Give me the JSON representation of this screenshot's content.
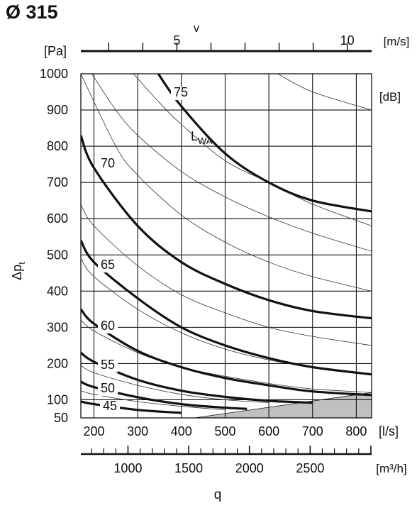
{
  "chart_data": {
    "type": "line",
    "title": "Ø 315",
    "ylabel": "Δp",
    "ylabel_sub": "t",
    "y_unit": "[Pa]",
    "y_ticks": [
      50,
      100,
      200,
      300,
      400,
      500,
      600,
      700,
      800,
      900,
      1000
    ],
    "ylim": [
      50,
      1000
    ],
    "xlabel": "q",
    "x_unit_ls": "[l/s]",
    "x_ticks_ls": [
      200,
      300,
      400,
      500,
      600,
      700,
      800
    ],
    "xlim_ls": [
      170,
      835
    ],
    "x_unit_m3h": "[m³/h]",
    "x_ticks_m3h": [
      1000,
      1500,
      2000,
      2500
    ],
    "v_label": "v",
    "v_unit": "[m/s]",
    "v_ticks": [
      5,
      10
    ],
    "db_unit": "[dB]",
    "series_label_main": "L",
    "series_label_sub": "WA",
    "grid": true,
    "series": [
      {
        "name": "75",
        "points": [
          [
            347,
            1000
          ],
          [
            400,
            910
          ],
          [
            500,
            780
          ],
          [
            600,
            700
          ],
          [
            700,
            650
          ],
          [
            835,
            620
          ]
        ]
      },
      {
        "name": "70",
        "points": [
          [
            170,
            830
          ],
          [
            200,
            740
          ],
          [
            300,
            580
          ],
          [
            400,
            480
          ],
          [
            500,
            420
          ],
          [
            600,
            375
          ],
          [
            700,
            345
          ],
          [
            835,
            325
          ]
        ]
      },
      {
        "name": "65",
        "points": [
          [
            170,
            540
          ],
          [
            200,
            480
          ],
          [
            300,
            380
          ],
          [
            400,
            300
          ],
          [
            500,
            250
          ],
          [
            600,
            215
          ],
          [
            700,
            190
          ],
          [
            835,
            170
          ]
        ]
      },
      {
        "name": "60",
        "points": [
          [
            170,
            350
          ],
          [
            200,
            310
          ],
          [
            300,
            235
          ],
          [
            400,
            190
          ],
          [
            500,
            160
          ],
          [
            600,
            140
          ],
          [
            700,
            123
          ],
          [
            835,
            113
          ]
        ]
      },
      {
        "name": "55",
        "points": [
          [
            170,
            230
          ],
          [
            200,
            205
          ],
          [
            300,
            155
          ],
          [
            400,
            125
          ],
          [
            500,
            108
          ],
          [
            600,
            97
          ],
          [
            700,
            92
          ]
        ]
      },
      {
        "name": "50",
        "points": [
          [
            170,
            150
          ],
          [
            200,
            135
          ],
          [
            300,
            107
          ],
          [
            400,
            88
          ],
          [
            500,
            78
          ],
          [
            550,
            75
          ]
        ]
      },
      {
        "name": "45",
        "points": [
          [
            170,
            95
          ],
          [
            200,
            88
          ],
          [
            300,
            72
          ],
          [
            400,
            64
          ]
        ]
      }
    ],
    "minor_lines": [
      [
        [
          195,
          1000
        ],
        [
          250,
          900
        ],
        [
          300,
          830
        ],
        [
          400,
          730
        ],
        [
          500,
          660
        ],
        [
          600,
          605
        ],
        [
          700,
          560
        ],
        [
          835,
          510
        ]
      ],
      [
        [
          290,
          1000
        ],
        [
          350,
          920
        ],
        [
          400,
          860
        ],
        [
          500,
          760
        ],
        [
          600,
          700
        ],
        [
          700,
          640
        ],
        [
          835,
          580
        ]
      ],
      [
        [
          620,
          1000
        ],
        [
          700,
          950
        ],
        [
          835,
          900
        ]
      ],
      [
        [
          170,
          1000
        ],
        [
          250,
          800
        ],
        [
          300,
          720
        ],
        [
          400,
          610
        ],
        [
          500,
          535
        ],
        [
          600,
          480
        ],
        [
          700,
          440
        ],
        [
          835,
          400
        ]
      ],
      [
        [
          170,
          640
        ],
        [
          200,
          580
        ],
        [
          300,
          470
        ],
        [
          400,
          390
        ],
        [
          500,
          340
        ],
        [
          600,
          300
        ],
        [
          700,
          275
        ],
        [
          835,
          250
        ]
      ],
      [
        [
          170,
          490
        ],
        [
          200,
          440
        ],
        [
          300,
          350
        ],
        [
          400,
          285
        ],
        [
          500,
          240
        ],
        [
          600,
          210
        ],
        [
          700,
          190
        ],
        [
          835,
          170
        ]
      ],
      [
        [
          170,
          320
        ],
        [
          200,
          290
        ],
        [
          300,
          230
        ],
        [
          400,
          190
        ],
        [
          500,
          165
        ],
        [
          600,
          145
        ],
        [
          700,
          130
        ],
        [
          835,
          120
        ]
      ],
      [
        [
          170,
          195
        ],
        [
          200,
          175
        ],
        [
          300,
          140
        ],
        [
          400,
          115
        ],
        [
          500,
          100
        ],
        [
          600,
          92
        ]
      ],
      [
        [
          170,
          125
        ],
        [
          200,
          115
        ],
        [
          300,
          95
        ],
        [
          400,
          82
        ],
        [
          500,
          72
        ]
      ]
    ],
    "shaded_region_fill": "#c0c0c0",
    "shaded_region": [
      [
        430,
        50
      ],
      [
        835,
        120
      ],
      [
        835,
        50
      ]
    ]
  }
}
